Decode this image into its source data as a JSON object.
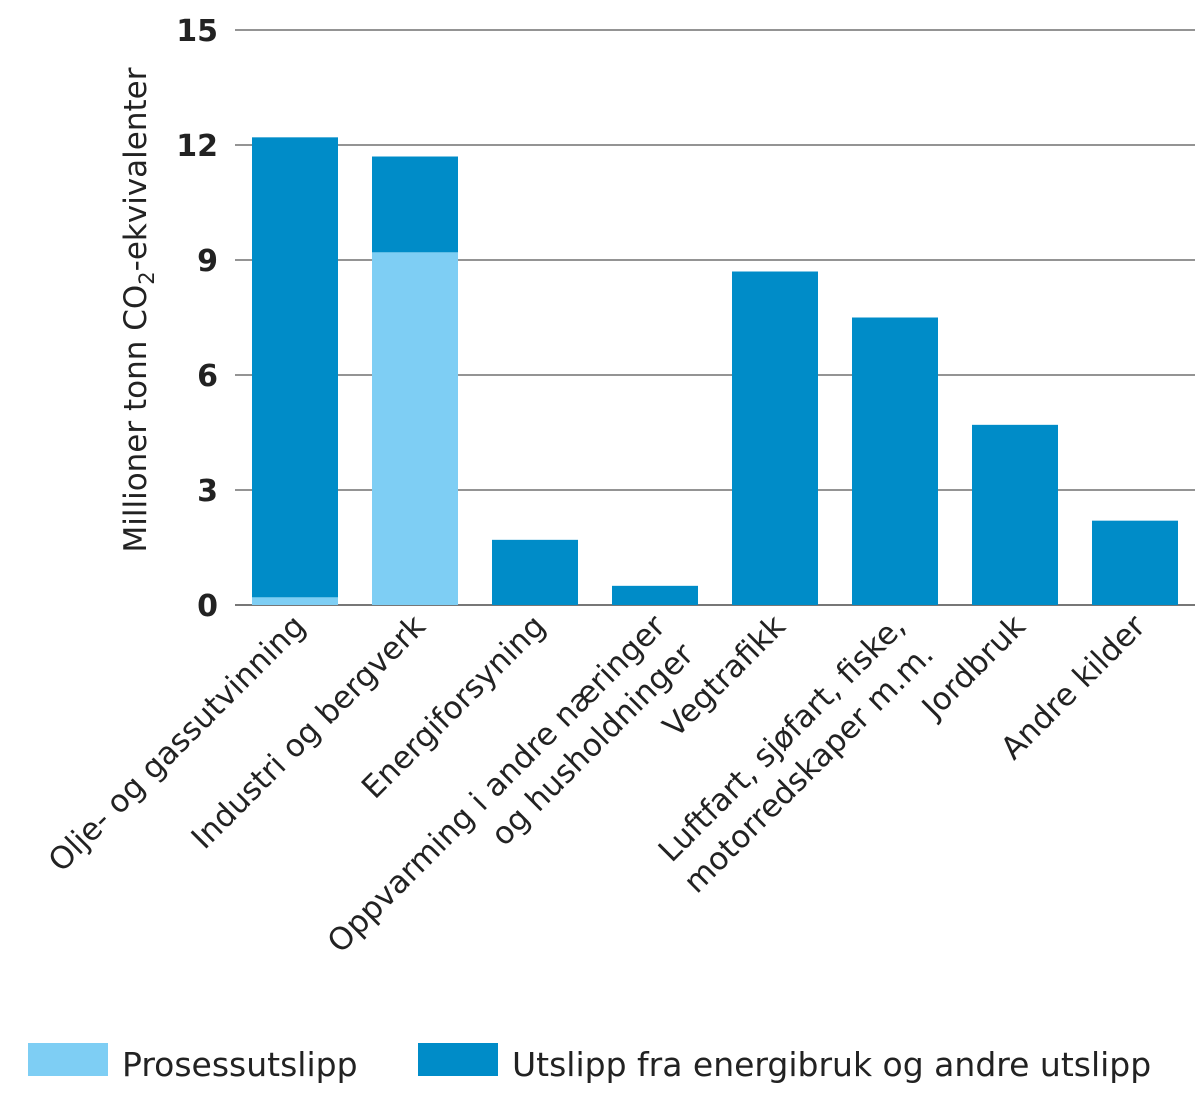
{
  "chart_data": {
    "type": "bar",
    "stacked": true,
    "title": "",
    "xlabel": "",
    "ylabel": {
      "main": "Millioner tonn CO",
      "sub": "2",
      "suffix": "-ekvivalenter"
    },
    "ylim": [
      0,
      15
    ],
    "yticks": [
      "0",
      "3",
      "6",
      "9",
      "12",
      "15"
    ],
    "grid": true,
    "legend_position": "bottom",
    "categories": [
      [
        "Olje- og gassutvinning"
      ],
      [
        "Industri og bergverk"
      ],
      [
        "Energiforsyning"
      ],
      [
        "Oppvarming i andre næringer",
        "og husholdninger"
      ],
      [
        "Vegtrafikk"
      ],
      [
        "Luftfart, sjøfart, fiske,",
        "motorredskaper m.m."
      ],
      [
        "Jordbruk"
      ],
      [
        "Andre kilder"
      ]
    ],
    "series": [
      {
        "name": "Prosessutslipp",
        "color": "#7ecef4",
        "values": [
          0.2,
          9.2,
          0,
          0,
          0,
          0,
          0,
          0
        ]
      },
      {
        "name": "Utslipp fra energibruk og andre utslipp",
        "color": "#008cc8",
        "values": [
          12.0,
          2.5,
          1.7,
          0.5,
          8.7,
          7.5,
          4.7,
          2.2
        ]
      }
    ]
  }
}
